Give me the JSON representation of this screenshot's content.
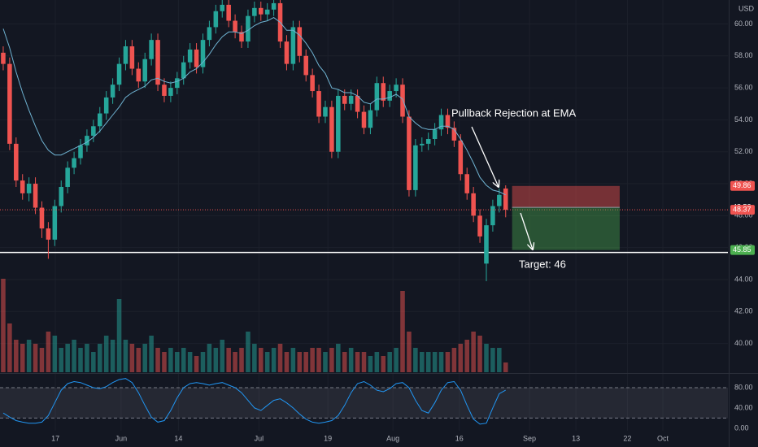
{
  "chart_data": {
    "type": "candlestick",
    "currency": "USD",
    "xlim": [
      -0.5,
      112.5
    ],
    "xticks": [
      {
        "value": 8.1,
        "label": "17"
      },
      {
        "value": 18.3,
        "label": "Jun"
      },
      {
        "value": 27.2,
        "label": "14"
      },
      {
        "value": 39.7,
        "label": "Jul"
      },
      {
        "value": 50.4,
        "label": "19"
      },
      {
        "value": 60.5,
        "label": "Aug"
      },
      {
        "value": 70.8,
        "label": "16"
      },
      {
        "value": 81.7,
        "label": "Sep"
      },
      {
        "value": 88.9,
        "label": "13"
      },
      {
        "value": 96.9,
        "label": "22"
      },
      {
        "value": 102.4,
        "label": "Oct"
      }
    ],
    "ylim": [
      38.2,
      61.5
    ],
    "yticks": [
      {
        "value": 40,
        "label": "40.00"
      },
      {
        "value": 42,
        "label": "42.00"
      },
      {
        "value": 44,
        "label": "44.00"
      },
      {
        "value": 46,
        "label": "46.00"
      },
      {
        "value": 48,
        "label": "48.00"
      },
      {
        "value": 50,
        "label": "50.00"
      },
      {
        "value": 52,
        "label": "52.00"
      },
      {
        "value": 54,
        "label": "54.00"
      },
      {
        "value": 56,
        "label": "56.00"
      },
      {
        "value": 58,
        "label": "58.00"
      },
      {
        "value": 60,
        "label": "60.00"
      }
    ],
    "grid": true,
    "up_color": "#26a69a",
    "down_color": "#ef5350",
    "open": [
      58.2,
      57.5,
      52.5,
      50.2,
      49.4,
      50.0,
      48.5,
      47.2,
      46.5,
      48.6,
      49.8,
      51.0,
      51.6,
      52.4,
      53.0,
      53.6,
      54.4,
      55.4,
      56.2,
      57.5,
      58.6,
      57.2,
      56.4,
      57.8,
      59.0,
      56.2,
      55.5,
      56.0,
      56.6,
      57.6,
      58.4,
      57.3,
      59.0,
      59.8,
      60.8,
      61.2,
      60.2,
      59.5,
      58.9,
      60.5,
      61.0,
      60.6,
      60.9,
      61.3,
      58.9,
      57.5,
      59.8,
      58.0,
      56.8,
      55.8,
      54.2,
      54.8,
      52.0,
      55.5,
      55.0,
      55.5,
      54.5,
      53.5,
      54.6,
      56.3,
      55.2,
      55.8,
      56.2,
      54.2,
      49.6,
      52.4,
      52.5,
      52.8,
      53.4,
      54.3,
      53.5,
      52.7,
      50.6,
      49.4,
      48.0,
      45.0,
      47.4,
      48.6,
      49.7
    ],
    "high": [
      58.6,
      57.9,
      52.9,
      50.6,
      50.4,
      50.4,
      48.9,
      47.6,
      49.0,
      50.2,
      51.4,
      52.0,
      52.8,
      53.4,
      54.0,
      54.8,
      55.8,
      56.6,
      57.9,
      59.0,
      59.0,
      57.6,
      58.2,
      59.4,
      59.4,
      56.6,
      56.4,
      57.0,
      58.0,
      58.8,
      58.8,
      59.4,
      60.2,
      61.2,
      61.6,
      61.6,
      60.6,
      59.9,
      60.9,
      61.4,
      61.4,
      61.3,
      61.7,
      61.7,
      59.3,
      60.2,
      60.2,
      58.4,
      57.2,
      56.2,
      55.2,
      55.2,
      55.9,
      55.9,
      55.9,
      55.9,
      54.9,
      55.0,
      56.7,
      56.7,
      56.2,
      56.6,
      56.6,
      54.6,
      52.8,
      52.9,
      53.2,
      53.8,
      54.7,
      54.7,
      53.9,
      53.1,
      51.0,
      49.8,
      48.4,
      47.8,
      49.0,
      49.7,
      49.9
    ],
    "low": [
      57.1,
      52.1,
      49.8,
      49.0,
      48.9,
      48.1,
      46.6,
      45.3,
      46.1,
      48.2,
      49.4,
      50.6,
      51.2,
      52.0,
      52.6,
      53.2,
      54.0,
      55.0,
      55.8,
      57.1,
      56.8,
      56.0,
      56.0,
      57.4,
      55.8,
      55.1,
      55.1,
      55.6,
      56.2,
      57.2,
      56.9,
      56.9,
      58.6,
      59.4,
      60.4,
      59.8,
      59.1,
      58.5,
      58.5,
      60.1,
      60.2,
      60.2,
      60.5,
      58.5,
      57.1,
      57.1,
      57.6,
      56.4,
      55.4,
      53.8,
      53.8,
      51.6,
      51.6,
      54.6,
      54.6,
      54.1,
      53.1,
      53.1,
      54.2,
      54.8,
      54.8,
      55.4,
      53.8,
      49.2,
      49.2,
      52.0,
      52.1,
      52.4,
      53.0,
      53.1,
      52.3,
      50.2,
      49.0,
      47.6,
      46.3,
      43.9,
      47.0,
      48.2,
      47.9
    ],
    "close": [
      57.5,
      52.5,
      50.2,
      49.4,
      50.0,
      48.5,
      47.2,
      46.5,
      48.6,
      49.8,
      51.0,
      51.6,
      52.4,
      53.0,
      53.6,
      54.4,
      55.4,
      56.2,
      57.5,
      58.6,
      57.2,
      56.4,
      57.8,
      59.0,
      56.2,
      55.5,
      56.0,
      56.6,
      57.6,
      58.4,
      57.3,
      59.0,
      59.8,
      60.8,
      61.2,
      60.2,
      59.5,
      58.9,
      60.5,
      61.0,
      60.6,
      60.9,
      61.3,
      58.9,
      57.5,
      59.8,
      58.0,
      56.8,
      55.8,
      54.2,
      54.8,
      52.0,
      55.5,
      55.0,
      55.5,
      54.5,
      53.5,
      54.6,
      56.3,
      55.2,
      55.8,
      56.2,
      54.2,
      49.6,
      52.4,
      52.5,
      52.8,
      53.4,
      54.3,
      53.5,
      52.7,
      50.6,
      49.4,
      48.0,
      46.7,
      47.4,
      48.6,
      49.3,
      48.37
    ],
    "ema": {
      "color": "#6fb3d2",
      "values": [
        59.7,
        58.5,
        57.0,
        55.7,
        54.6,
        53.6,
        52.7,
        52.1,
        51.8,
        51.8,
        52.0,
        52.2,
        52.4,
        52.6,
        52.9,
        53.3,
        53.8,
        54.3,
        54.8,
        55.4,
        55.7,
        55.9,
        56.1,
        56.5,
        56.6,
        56.4,
        56.3,
        56.4,
        56.6,
        57.0,
        57.2,
        57.6,
        58.1,
        58.7,
        59.2,
        59.5,
        59.5,
        59.4,
        59.6,
        59.9,
        60.1,
        60.2,
        60.4,
        60.1,
        59.6,
        59.6,
        59.3,
        58.8,
        58.2,
        57.4,
        56.9,
        56.0,
        55.9,
        55.7,
        55.7,
        55.5,
        55.1,
        55.0,
        55.3,
        55.3,
        55.4,
        55.6,
        55.3,
        54.2,
        53.8,
        53.5,
        53.4,
        53.4,
        53.6,
        53.6,
        53.4,
        52.8,
        52.1,
        51.3,
        50.4,
        49.9,
        49.6,
        49.5,
        49.3
      ]
    },
    "volume": [
      115,
      60,
      40,
      35,
      40,
      35,
      30,
      50,
      45,
      30,
      35,
      40,
      30,
      35,
      25,
      35,
      45,
      40,
      90,
      40,
      35,
      30,
      35,
      45,
      30,
      25,
      30,
      25,
      30,
      25,
      20,
      25,
      35,
      30,
      40,
      30,
      25,
      30,
      50,
      35,
      30,
      25,
      30,
      35,
      25,
      30,
      25,
      25,
      30,
      30,
      25,
      30,
      35,
      25,
      30,
      25,
      25,
      20,
      25,
      20,
      25,
      30,
      100,
      50,
      30,
      25,
      25,
      25,
      25,
      25,
      30,
      35,
      40,
      50,
      45,
      35,
      30,
      30,
      12
    ],
    "support_line": {
      "value": 45.7,
      "color": "#ffffff"
    },
    "last_price": 48.37,
    "position": {
      "x": [
        79,
        95.7
      ],
      "stop": 49.86,
      "entry": 48.52,
      "target": 45.85
    },
    "annotations": [
      {
        "text": "Pullback Rejection at EMA"
      },
      {
        "text": "Target: 46"
      }
    ],
    "oscillator": {
      "ylim": [
        -37,
        104
      ],
      "yticks": [
        {
          "value": 0,
          "label": "0.00"
        },
        {
          "value": 40,
          "label": "40.00"
        },
        {
          "value": 80,
          "label": "80.00"
        }
      ],
      "bands": [
        20,
        80
      ],
      "color": "#2196f3",
      "values": [
        30,
        22,
        15,
        12,
        10,
        10,
        12,
        25,
        50,
        75,
        88,
        92,
        90,
        85,
        80,
        78,
        82,
        90,
        96,
        98,
        90,
        70,
        45,
        22,
        12,
        15,
        35,
        60,
        80,
        88,
        90,
        88,
        85,
        88,
        90,
        85,
        80,
        70,
        55,
        40,
        35,
        45,
        55,
        58,
        50,
        40,
        28,
        18,
        12,
        10,
        12,
        15,
        25,
        45,
        70,
        88,
        92,
        85,
        75,
        72,
        78,
        88,
        90,
        80,
        55,
        35,
        30,
        50,
        75,
        90,
        92,
        75,
        45,
        18,
        8,
        10,
        40,
        68,
        75
      ]
    }
  }
}
